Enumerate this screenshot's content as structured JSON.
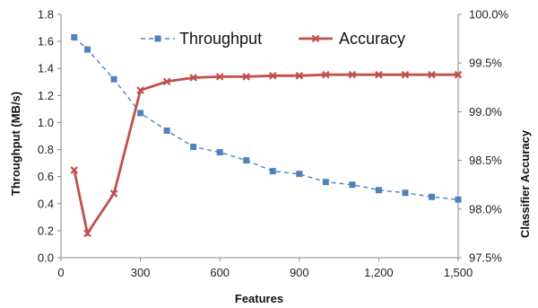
{
  "chart_data": {
    "type": "line",
    "xlabel": "Features",
    "ylabel_left": "Throughput (MB/s)",
    "ylabel_right": "Classifier Accuracy",
    "xlim": [
      0,
      1500
    ],
    "ylim_left": [
      0,
      1.8
    ],
    "ylim_right": [
      97.5,
      100.0
    ],
    "x_ticks": [
      "0",
      "300",
      "600",
      "900",
      "1,200",
      "1,500"
    ],
    "y_left_ticks": [
      "0.0",
      "0.2",
      "0.4",
      "0.6",
      "0.8",
      "1.0",
      "1.2",
      "1.4",
      "1.6",
      "1.8"
    ],
    "y_right_ticks": [
      "97.5%",
      "98.0%",
      "98.5%",
      "99.0%",
      "99.5%",
      "100.0%"
    ],
    "legend_position": "top-right",
    "grid": false,
    "series": [
      {
        "name": "Throughput",
        "axis": "left",
        "color": "#4f81bd",
        "style": "dashed",
        "marker": "square",
        "x": [
          50,
          100,
          200,
          300,
          400,
          500,
          600,
          700,
          800,
          900,
          1000,
          1100,
          1200,
          1300,
          1400,
          1500
        ],
        "y": [
          1.63,
          1.54,
          1.32,
          1.07,
          0.94,
          0.82,
          0.78,
          0.72,
          0.64,
          0.62,
          0.56,
          0.54,
          0.5,
          0.48,
          0.45,
          0.43
        ]
      },
      {
        "name": "Accuracy",
        "axis": "right",
        "color": "#c0504d",
        "style": "solid",
        "marker": "x",
        "x": [
          50,
          100,
          200,
          300,
          400,
          500,
          600,
          700,
          800,
          900,
          1000,
          1100,
          1200,
          1300,
          1400,
          1500
        ],
        "y": [
          98.4,
          97.75,
          98.16,
          99.22,
          99.31,
          99.35,
          99.36,
          99.36,
          99.37,
          99.37,
          99.38,
          99.38,
          99.38,
          99.38,
          99.38,
          99.38
        ]
      }
    ]
  }
}
